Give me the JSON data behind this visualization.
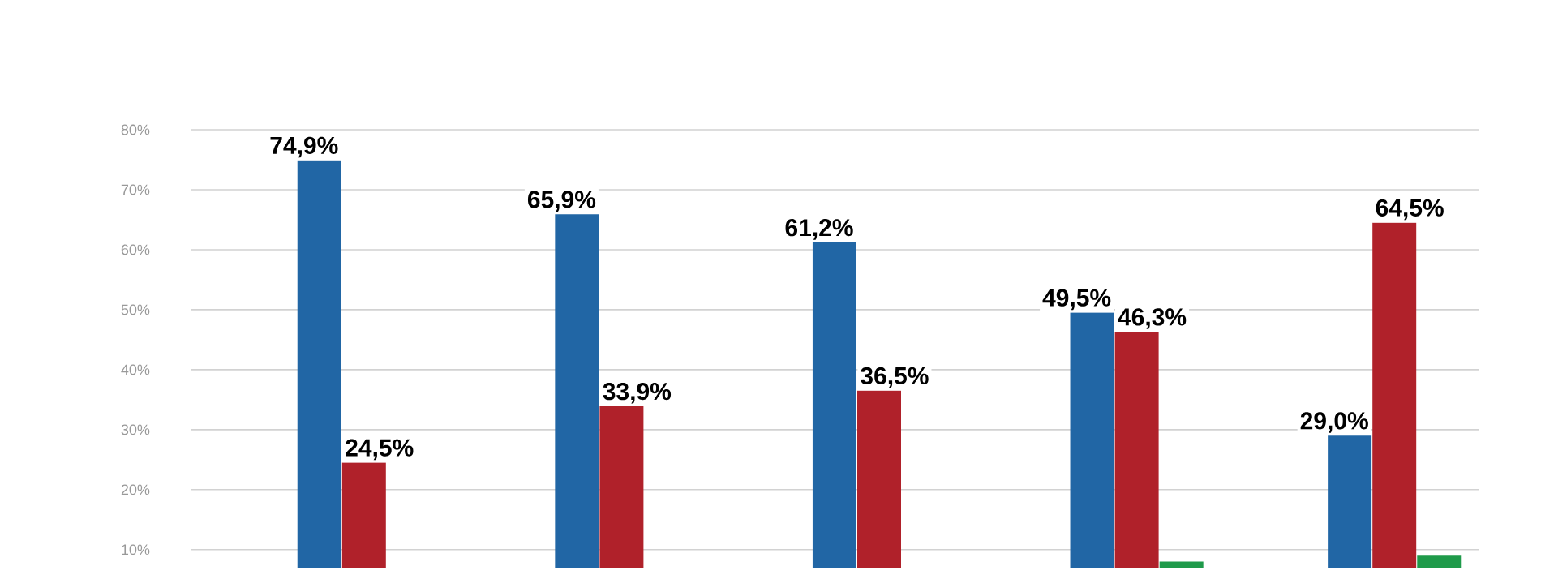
{
  "chart_data": {
    "type": "bar",
    "categories": [
      null,
      null,
      null,
      null,
      null
    ],
    "series": [
      {
        "color": "#2166a5",
        "values": [
          74.9,
          65.9,
          61.2,
          49.5,
          29.0
        ],
        "value_labels": [
          "74,9%",
          "65,9%",
          "61,2%",
          "49,5%",
          "29,0%"
        ]
      },
      {
        "color": "#b0212a",
        "values": [
          24.5,
          33.9,
          36.5,
          46.3,
          64.5
        ],
        "value_labels": [
          "24,5%",
          "33,9%",
          "36,5%",
          "46,3%",
          "64,5%"
        ]
      },
      {
        "color": "#1f9a4a",
        "values": [
          null,
          null,
          null,
          8,
          9
        ]
      }
    ],
    "ylim": [
      7,
      80
    ],
    "yticks": [
      {
        "value": 10,
        "label": "10%"
      },
      {
        "value": 20,
        "label": "20%"
      },
      {
        "value": 30,
        "label": "30%"
      },
      {
        "value": 40,
        "label": "40%"
      },
      {
        "value": 50,
        "label": "50%"
      },
      {
        "value": 60,
        "label": "60%"
      },
      {
        "value": 70,
        "label": "70%"
      },
      {
        "value": 80,
        "label": "80%"
      }
    ],
    "grid": "y"
  }
}
